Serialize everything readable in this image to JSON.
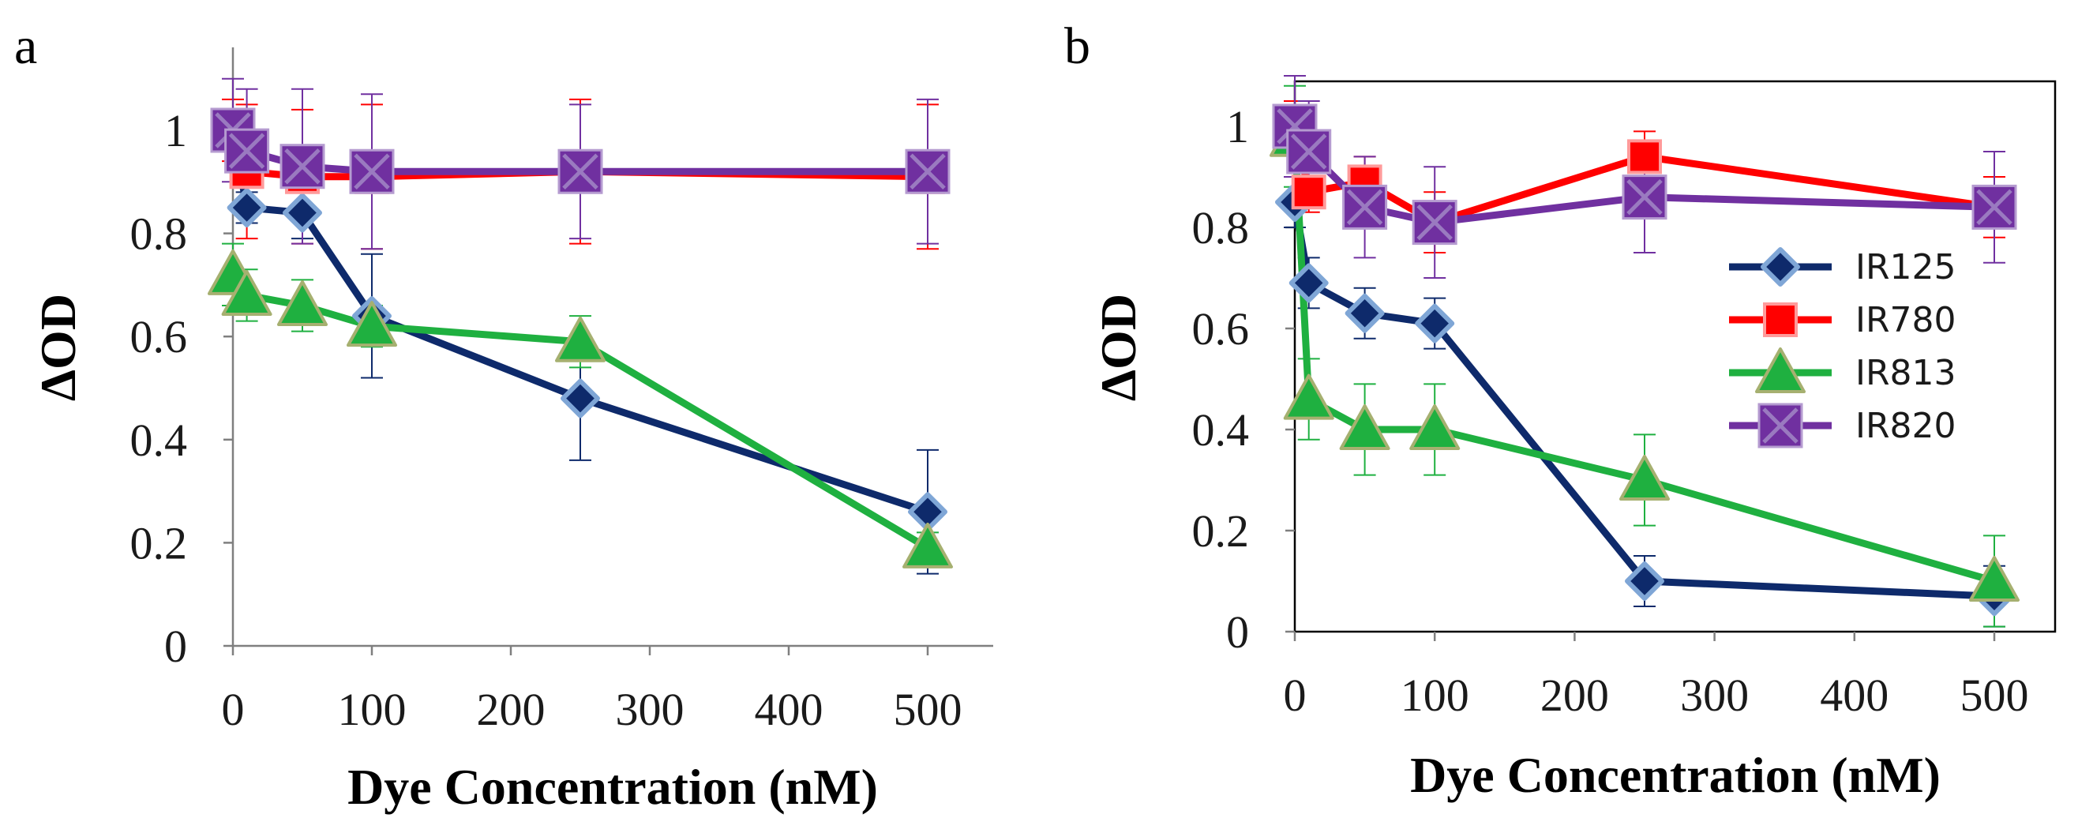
{
  "chart_data": [
    {
      "panel": "a",
      "type": "line",
      "xlabel": "Dye Concentration (nM)",
      "ylabel": "ΔOD",
      "xlim": [
        -25,
        550
      ],
      "ylim": [
        0,
        1.1
      ],
      "xticks": [
        0,
        100,
        200,
        300,
        400,
        500
      ],
      "yticks": [
        0,
        0.2,
        0.4,
        0.6,
        0.8,
        1
      ],
      "xtick_labels": [
        "0",
        "100",
        "200",
        "300",
        "400",
        "500"
      ],
      "ytick_labels": [
        "0",
        "0.2",
        "0.4",
        "0.6",
        "0.8",
        "1"
      ],
      "grid": false,
      "show_legend": false,
      "x": [
        0,
        10,
        50,
        100,
        250,
        500
      ],
      "series": [
        {
          "name": "IR125",
          "color": "#0e2a6b",
          "marker": "diamond",
          "values": [
            1.0,
            0.85,
            0.84,
            0.64,
            0.48,
            0.26
          ],
          "errors": [
            0.04,
            0.03,
            0.05,
            0.12,
            0.12,
            0.12
          ]
        },
        {
          "name": "IR780",
          "color": "#ff0000",
          "marker": "square",
          "values": [
            1.0,
            0.92,
            0.91,
            0.91,
            0.92,
            0.91
          ],
          "errors": [
            0.06,
            0.13,
            0.13,
            0.14,
            0.14,
            0.14
          ]
        },
        {
          "name": "IR813",
          "color": "#1fb040",
          "marker": "triangle",
          "values": [
            0.72,
            0.68,
            0.66,
            0.62,
            0.59,
            0.19
          ],
          "errors": [
            0.06,
            0.05,
            0.05,
            0.04,
            0.05,
            0.03
          ]
        },
        {
          "name": "IR820",
          "color": "#7030a0",
          "marker": "x-square",
          "values": [
            1.0,
            0.96,
            0.93,
            0.92,
            0.92,
            0.92
          ],
          "errors": [
            0.1,
            0.12,
            0.15,
            0.15,
            0.13,
            0.14
          ]
        }
      ]
    },
    {
      "panel": "b",
      "type": "line",
      "xlabel": "Dye Concentration (nM)",
      "ylabel": "ΔOD",
      "xlim": [
        -25,
        550
      ],
      "ylim": [
        0,
        1.1
      ],
      "xticks": [
        0,
        100,
        200,
        300,
        400,
        500
      ],
      "yticks": [
        0,
        0.2,
        0.4,
        0.6,
        0.8,
        1
      ],
      "xtick_labels": [
        "0",
        "100",
        "200",
        "300",
        "400",
        "500"
      ],
      "ytick_labels": [
        "0",
        "0.2",
        "0.4",
        "0.6",
        "0.8",
        "1"
      ],
      "grid": false,
      "show_legend": true,
      "legend_position": "right",
      "x": [
        0,
        10,
        50,
        100,
        250,
        500
      ],
      "series": [
        {
          "name": "IR125",
          "color": "#0e2a6b",
          "marker": "diamond",
          "values": [
            0.85,
            0.69,
            0.63,
            0.61,
            0.1,
            0.07
          ],
          "errors": [
            0.05,
            0.05,
            0.05,
            0.05,
            0.05,
            0.06
          ]
        },
        {
          "name": "IR780",
          "color": "#ff0000",
          "marker": "square",
          "values": [
            1.0,
            0.87,
            0.89,
            0.81,
            0.94,
            0.84
          ],
          "errors": [
            0.05,
            0.04,
            0.05,
            0.06,
            0.05,
            0.06
          ]
        },
        {
          "name": "IR813",
          "color": "#1fb040",
          "marker": "triangle",
          "values": [
            0.98,
            0.46,
            0.4,
            0.4,
            0.3,
            0.1
          ],
          "errors": [
            0.1,
            0.08,
            0.09,
            0.09,
            0.09,
            0.09
          ]
        },
        {
          "name": "IR820",
          "color": "#7030a0",
          "marker": "x-square",
          "values": [
            1.0,
            0.95,
            0.84,
            0.81,
            0.86,
            0.84
          ],
          "errors": [
            0.1,
            0.1,
            0.1,
            0.11,
            0.11,
            0.11
          ]
        }
      ]
    }
  ]
}
